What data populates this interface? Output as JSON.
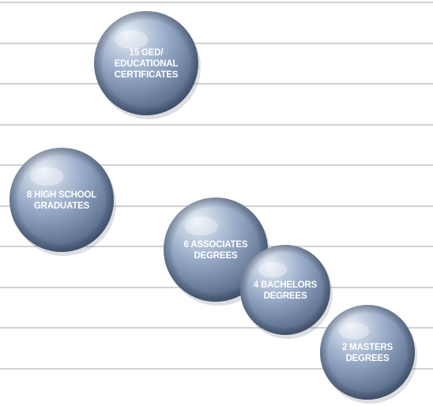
{
  "chart_data": {
    "type": "bubble",
    "grid": true,
    "series": [
      {
        "points": [
          {
            "value": 15,
            "label_lines": [
              "15 GED/",
              "EDUCATIONAL",
              "CERTIFICATES"
            ]
          },
          {
            "value": 8,
            "label_lines": [
              "8 HIGH SCHOOL",
              "GRADUATES"
            ]
          },
          {
            "value": 6,
            "label_lines": [
              "6 ASSOCIATES",
              "DEGREES"
            ]
          },
          {
            "value": 4,
            "label_lines": [
              "4 BACHELORS",
              "DEGREES"
            ]
          },
          {
            "value": 2,
            "label_lines": [
              "2 MASTERS",
              "DEGREES"
            ]
          }
        ]
      }
    ],
    "colors": {
      "bubble_light": "#e9eff7",
      "bubble_mid": "#98abc8",
      "bubble_dark": "#4a5e7d",
      "gridline": "#c4c4c4",
      "label": "#ffffff"
    }
  }
}
